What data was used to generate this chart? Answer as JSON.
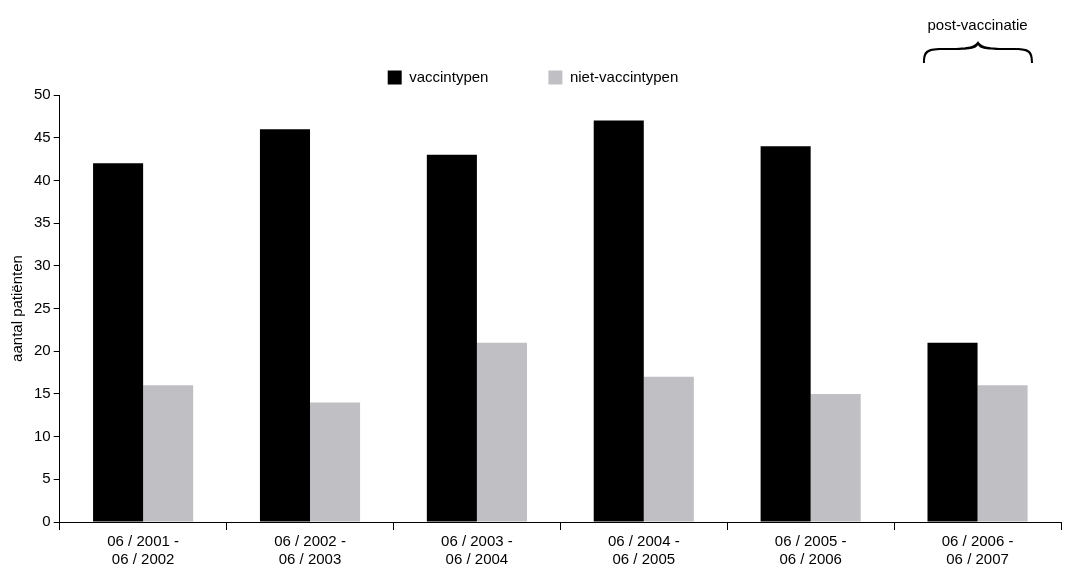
{
  "chart_data": {
    "type": "bar",
    "ylabel": "aantal patiënten",
    "categories": [
      "06 / 2001 - 06 / 2002",
      "06 / 2002 - 06 / 2003",
      "06 / 2003 - 06 / 2004",
      "06 / 2004 - 06 / 2005",
      "06 / 2005 - 06 / 2006",
      "06 / 2006 - 06 / 2007"
    ],
    "series": [
      {
        "name": "vaccintypen",
        "color": "#000000",
        "values": [
          42,
          46,
          43,
          47,
          44,
          21
        ]
      },
      {
        "name": "niet-vaccintypen",
        "color": "#c0bfc4",
        "values": [
          16,
          14,
          21,
          17,
          15,
          16
        ]
      }
    ],
    "ylim": [
      0,
      50
    ],
    "yticks": [
      0,
      5,
      10,
      15,
      20,
      25,
      30,
      35,
      40,
      45,
      50
    ],
    "grid": false,
    "legend": "top",
    "annotations": [
      "post-vaccinatie"
    ]
  }
}
